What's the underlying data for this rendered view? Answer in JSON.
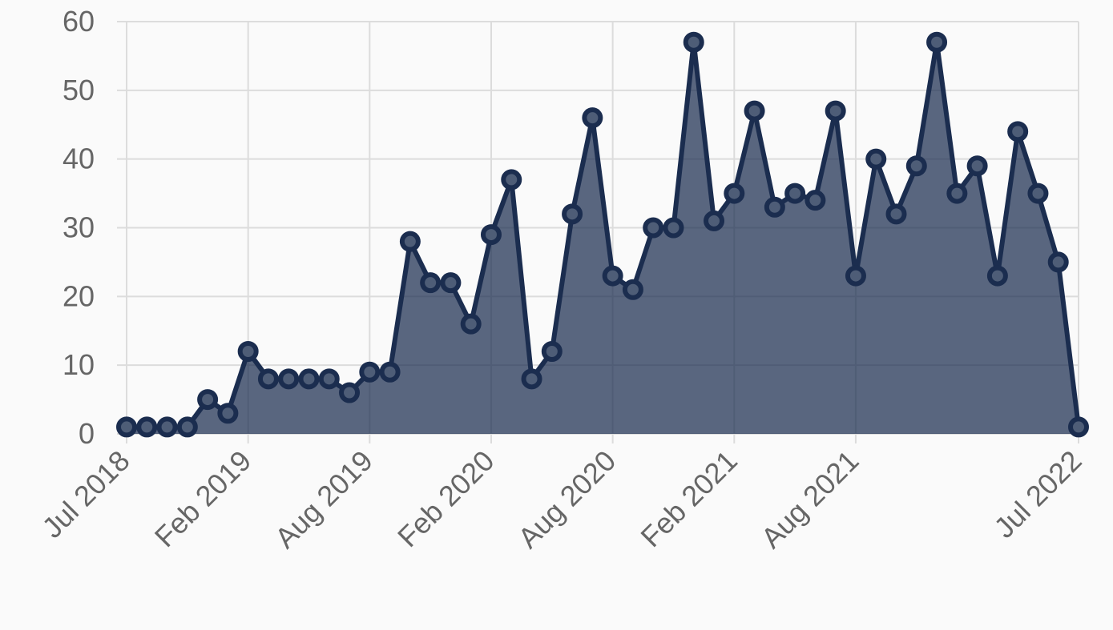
{
  "chart_data": {
    "type": "line",
    "fill": true,
    "categories": [
      "Jul 2018",
      null,
      null,
      null,
      null,
      null,
      "Feb 2019",
      null,
      null,
      null,
      null,
      null,
      "Aug 2019",
      null,
      null,
      null,
      null,
      null,
      "Feb 2020",
      null,
      null,
      null,
      null,
      null,
      "Aug 2020",
      null,
      null,
      null,
      null,
      null,
      "Feb 2021",
      null,
      null,
      null,
      null,
      null,
      "Aug 2021",
      null,
      null,
      null,
      null,
      null,
      null,
      null,
      null,
      null,
      null,
      "Jul 2022"
    ],
    "values": [
      1,
      1,
      1,
      1,
      5,
      3,
      12,
      8,
      8,
      8,
      8,
      6,
      9,
      9,
      28,
      22,
      22,
      16,
      29,
      37,
      8,
      12,
      32,
      46,
      23,
      21,
      30,
      30,
      57,
      31,
      35,
      47,
      33,
      35,
      34,
      47,
      23,
      40,
      32,
      39,
      57,
      35,
      39,
      23,
      44,
      35,
      25,
      1
    ],
    "color": "#1b2d4f",
    "ylim": [
      0,
      60
    ],
    "yticks": [
      0,
      10,
      20,
      30,
      40,
      50,
      60
    ],
    "grid": true
  }
}
